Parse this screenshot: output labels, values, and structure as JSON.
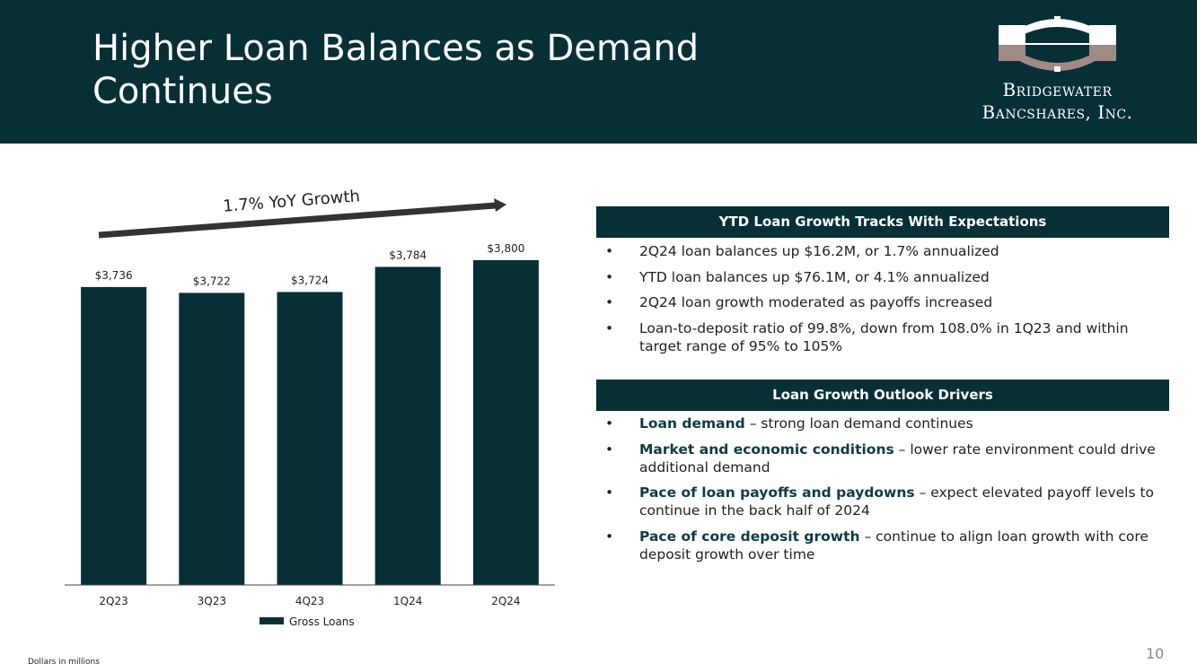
{
  "slide": {
    "title": "Higher Loan Balances as Demand Continues",
    "page_number": "10",
    "footnote": "Dollars in millions"
  },
  "logo": {
    "line1": "Bridgewater",
    "line2": "Bancshares, Inc."
  },
  "growth_arrow": {
    "label": "1.7% YoY Growth"
  },
  "chart_data": {
    "type": "bar",
    "categories": [
      "2Q23",
      "3Q23",
      "4Q23",
      "1Q24",
      "2Q24"
    ],
    "series": [
      {
        "name": "Gross Loans",
        "values": [
          3736,
          3722,
          3724,
          3784,
          3800
        ]
      }
    ],
    "data_labels": [
      "$3,736",
      "$3,722",
      "$3,724",
      "$3,784",
      "$3,800"
    ],
    "ylim": [
      3025,
      3800
    ],
    "grid": false,
    "legend": "bottom",
    "bar_color": "#072f36"
  },
  "panels": [
    {
      "header": "YTD Loan Growth Tracks With Expectations",
      "bullets": [
        {
          "em": "",
          "text": "2Q24 loan balances up $16.2M, or 1.7% annualized"
        },
        {
          "em": "",
          "text": "YTD loan balances up $76.1M, or 4.1% annualized"
        },
        {
          "em": "",
          "text": "2Q24 loan growth moderated as payoffs increased"
        },
        {
          "em": "",
          "text": "Loan-to-deposit ratio of 99.8%, down from 108.0% in 1Q23 and within target range of 95% to 105%"
        }
      ]
    },
    {
      "header": "Loan Growth Outlook Drivers",
      "bullets": [
        {
          "em": "Loan demand",
          "text": " – strong loan demand continues"
        },
        {
          "em": "Market and economic conditions",
          "text": " – lower rate environment could drive additional demand"
        },
        {
          "em": "Pace of loan payoffs and paydowns",
          "text": " – expect elevated payoff levels to continue in the back half of 2024"
        },
        {
          "em": "Pace of core deposit growth",
          "text": " – continue to align loan growth with core deposit growth over time"
        }
      ]
    }
  ],
  "colors": {
    "brand_dark": "#072f36",
    "logo_accent": "#a08a86",
    "emphasis_text": "#0e3b44"
  }
}
